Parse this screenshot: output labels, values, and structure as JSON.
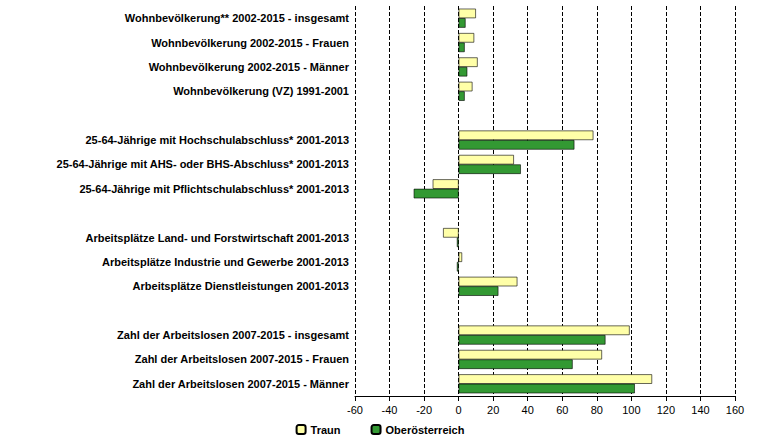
{
  "chart_data": {
    "type": "bar",
    "orientation": "horizontal",
    "categories": [
      "Wohnbevölkerung** 2002-2015 - insgesamt",
      "Wohnbevölkerung 2002-2015 - Frauen",
      "Wohnbevölkerung 2002-2015 - Männer",
      "Wohnbevölkerung (VZ) 1991-2001",
      null,
      "25-64-Jährige mit Hochschulabschluss* 2001-2013",
      "25-64-Jährige mit AHS- oder BHS-Abschluss* 2001-2013",
      "25-64-Jährige mit Pflichtschulabschluss* 2001-2013",
      null,
      "Arbeitsplätze Land- und Forstwirtschaft 2001-2013",
      "Arbeitsplätze Industrie und Gewerbe 2001-2013",
      "Arbeitsplätze Dienstleistungen 2001-2013",
      null,
      "Zahl der Arbeitslosen 2007-2015 - insgesamt",
      "Zahl der Arbeitslosen 2007-2015 - Frauen",
      "Zahl der Arbeitslosen 2007-2015 - Männer"
    ],
    "series": [
      {
        "name": "Traun",
        "color": "#ffffa8",
        "values": [
          10,
          9,
          11,
          8,
          null,
          78,
          32,
          -15,
          null,
          -9,
          2,
          34,
          null,
          99,
          83,
          112
        ]
      },
      {
        "name": "Oberösterreich",
        "color": "#339933",
        "values": [
          4,
          3.5,
          5,
          3.5,
          null,
          67,
          36,
          -26,
          null,
          -1,
          -1,
          23,
          null,
          85,
          66,
          102
        ]
      }
    ],
    "xlim": [
      -60,
      160
    ],
    "xticks": [
      -60,
      -40,
      -20,
      0,
      20,
      40,
      60,
      80,
      100,
      120,
      140,
      160
    ],
    "grid": true,
    "legend": "bottom"
  }
}
